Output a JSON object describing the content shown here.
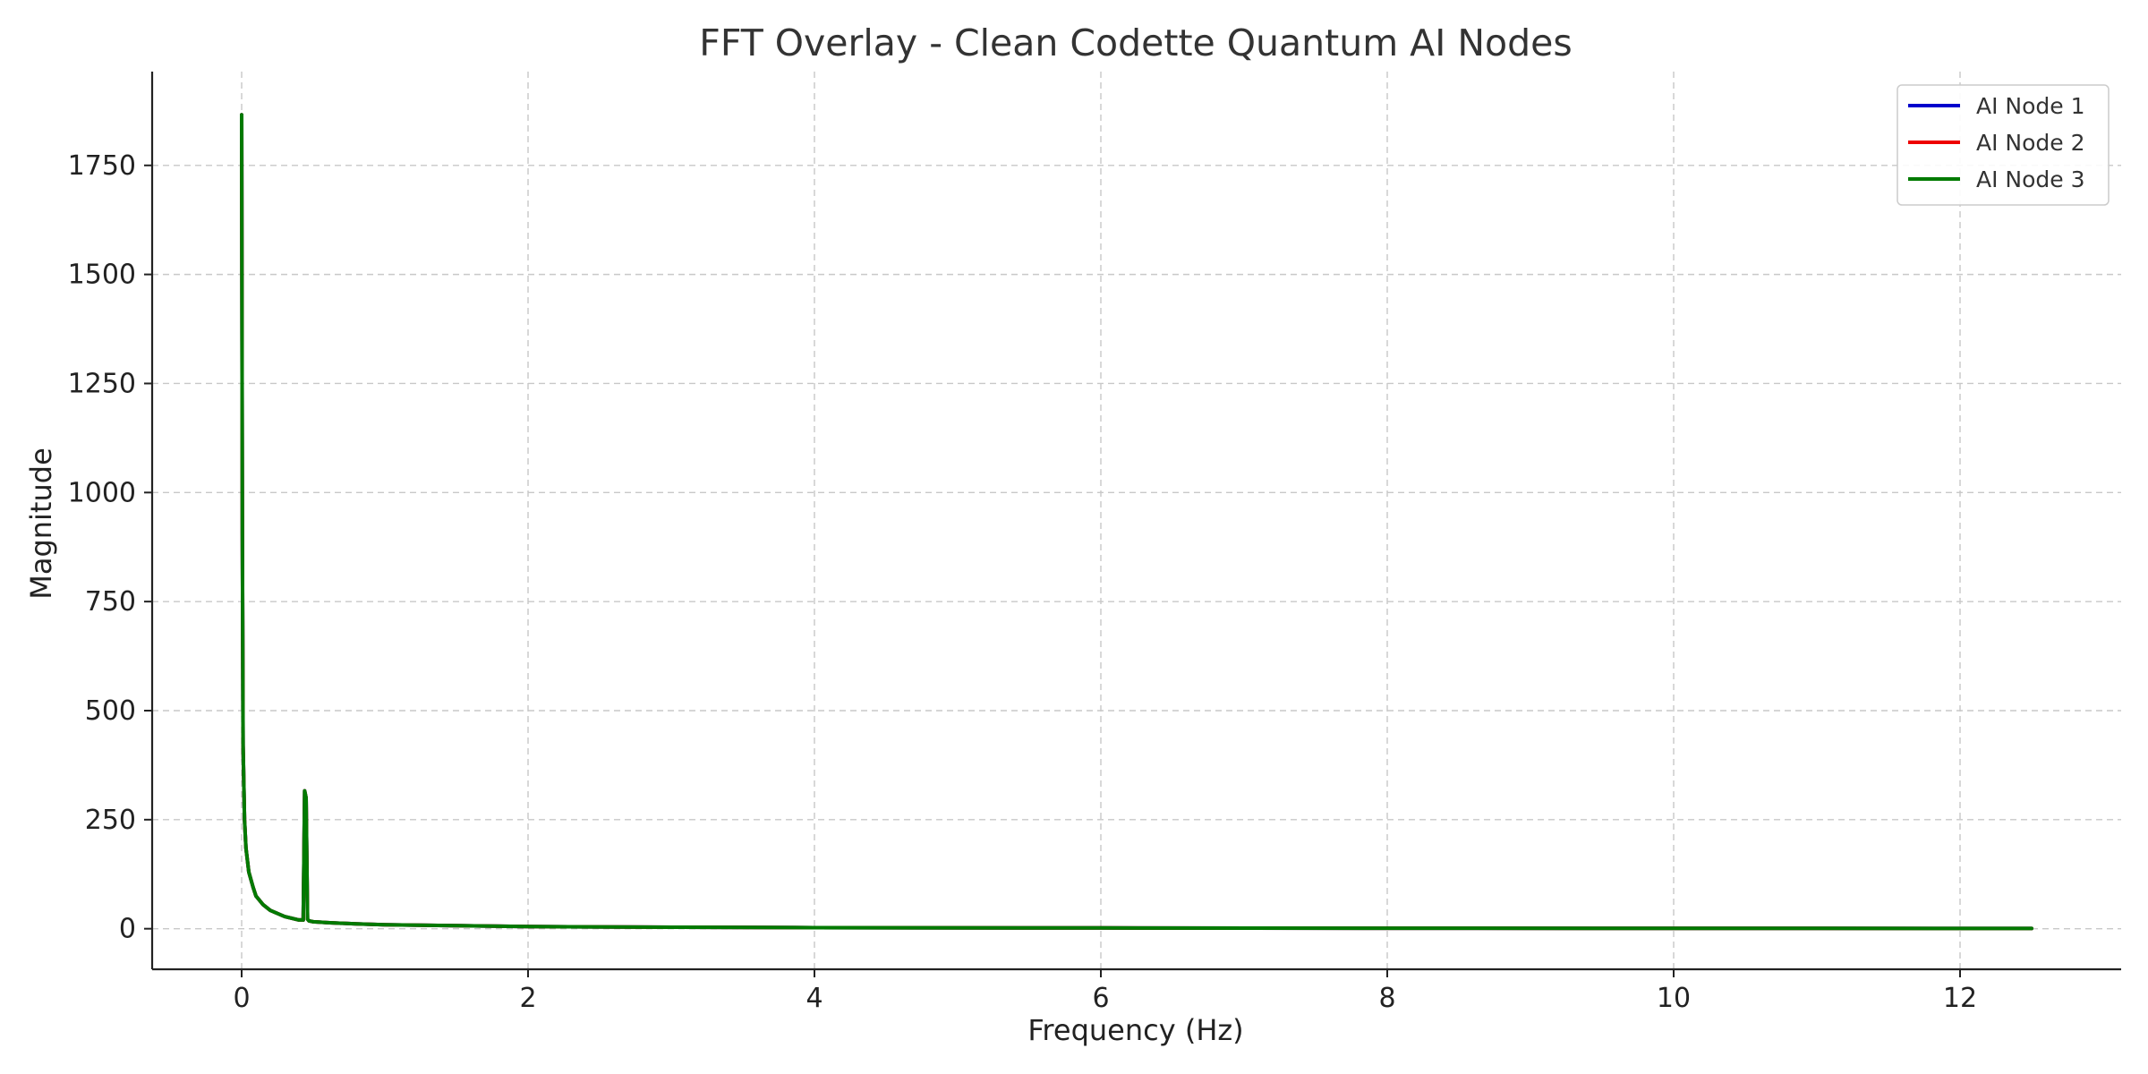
{
  "chart_data": {
    "type": "line",
    "title": "FFT Overlay - Clean Codette Quantum AI Nodes",
    "xlabel": "Frequency (Hz)",
    "ylabel": "Magnitude",
    "xlim": [
      -0.625,
      13.125
    ],
    "ylim": [
      -93,
      1965
    ],
    "x_ticks": [
      0,
      2,
      4,
      6,
      8,
      10,
      12
    ],
    "y_ticks": [
      0,
      250,
      500,
      750,
      1000,
      1250,
      1500,
      1750
    ],
    "grid": true,
    "legend_position": "top-right",
    "series": [
      {
        "name": "AI Node 1",
        "color": "#0000cc",
        "x": [
          0,
          0.005,
          0.01,
          0.02,
          0.03,
          0.05,
          0.08,
          0.1,
          0.15,
          0.2,
          0.3,
          0.4,
          0.43,
          0.44,
          0.45,
          0.46,
          0.47,
          0.5,
          0.6,
          0.8,
          1,
          1.5,
          2,
          3,
          4,
          6,
          8,
          10,
          12,
          12.5
        ],
        "y": [
          1866,
          900,
          420,
          250,
          185,
          130,
          95,
          75,
          55,
          42,
          28,
          20,
          20,
          316,
          300,
          22,
          18,
          16,
          14,
          11,
          9,
          7,
          5,
          3.5,
          2.5,
          1.8,
          1.2,
          0.9,
          0.6,
          0.5
        ]
      },
      {
        "name": "AI Node 2",
        "color": "#ee0000",
        "x": [
          0,
          0.005,
          0.01,
          0.02,
          0.03,
          0.05,
          0.08,
          0.1,
          0.15,
          0.2,
          0.3,
          0.4,
          0.43,
          0.44,
          0.45,
          0.46,
          0.47,
          0.5,
          0.6,
          0.8,
          1,
          1.5,
          2,
          3,
          4,
          6,
          8,
          10,
          12,
          12.5
        ],
        "y": [
          1866,
          900,
          420,
          250,
          185,
          130,
          95,
          75,
          55,
          42,
          28,
          20,
          20,
          316,
          300,
          22,
          18,
          16,
          14,
          11,
          9,
          7,
          5,
          3.5,
          2.5,
          1.8,
          1.2,
          0.9,
          0.6,
          0.5
        ]
      },
      {
        "name": "AI Node 3",
        "color": "#007a00",
        "x": [
          0,
          0.005,
          0.01,
          0.02,
          0.03,
          0.05,
          0.08,
          0.1,
          0.15,
          0.2,
          0.3,
          0.4,
          0.43,
          0.44,
          0.45,
          0.46,
          0.47,
          0.5,
          0.6,
          0.8,
          1,
          1.5,
          2,
          3,
          4,
          6,
          8,
          10,
          12,
          12.5
        ],
        "y": [
          1866,
          900,
          420,
          250,
          185,
          130,
          95,
          75,
          55,
          42,
          28,
          20,
          20,
          316,
          300,
          22,
          18,
          16,
          14,
          11,
          9,
          7,
          5,
          3.5,
          2.5,
          1.8,
          1.2,
          0.9,
          0.6,
          0.5
        ]
      }
    ]
  }
}
